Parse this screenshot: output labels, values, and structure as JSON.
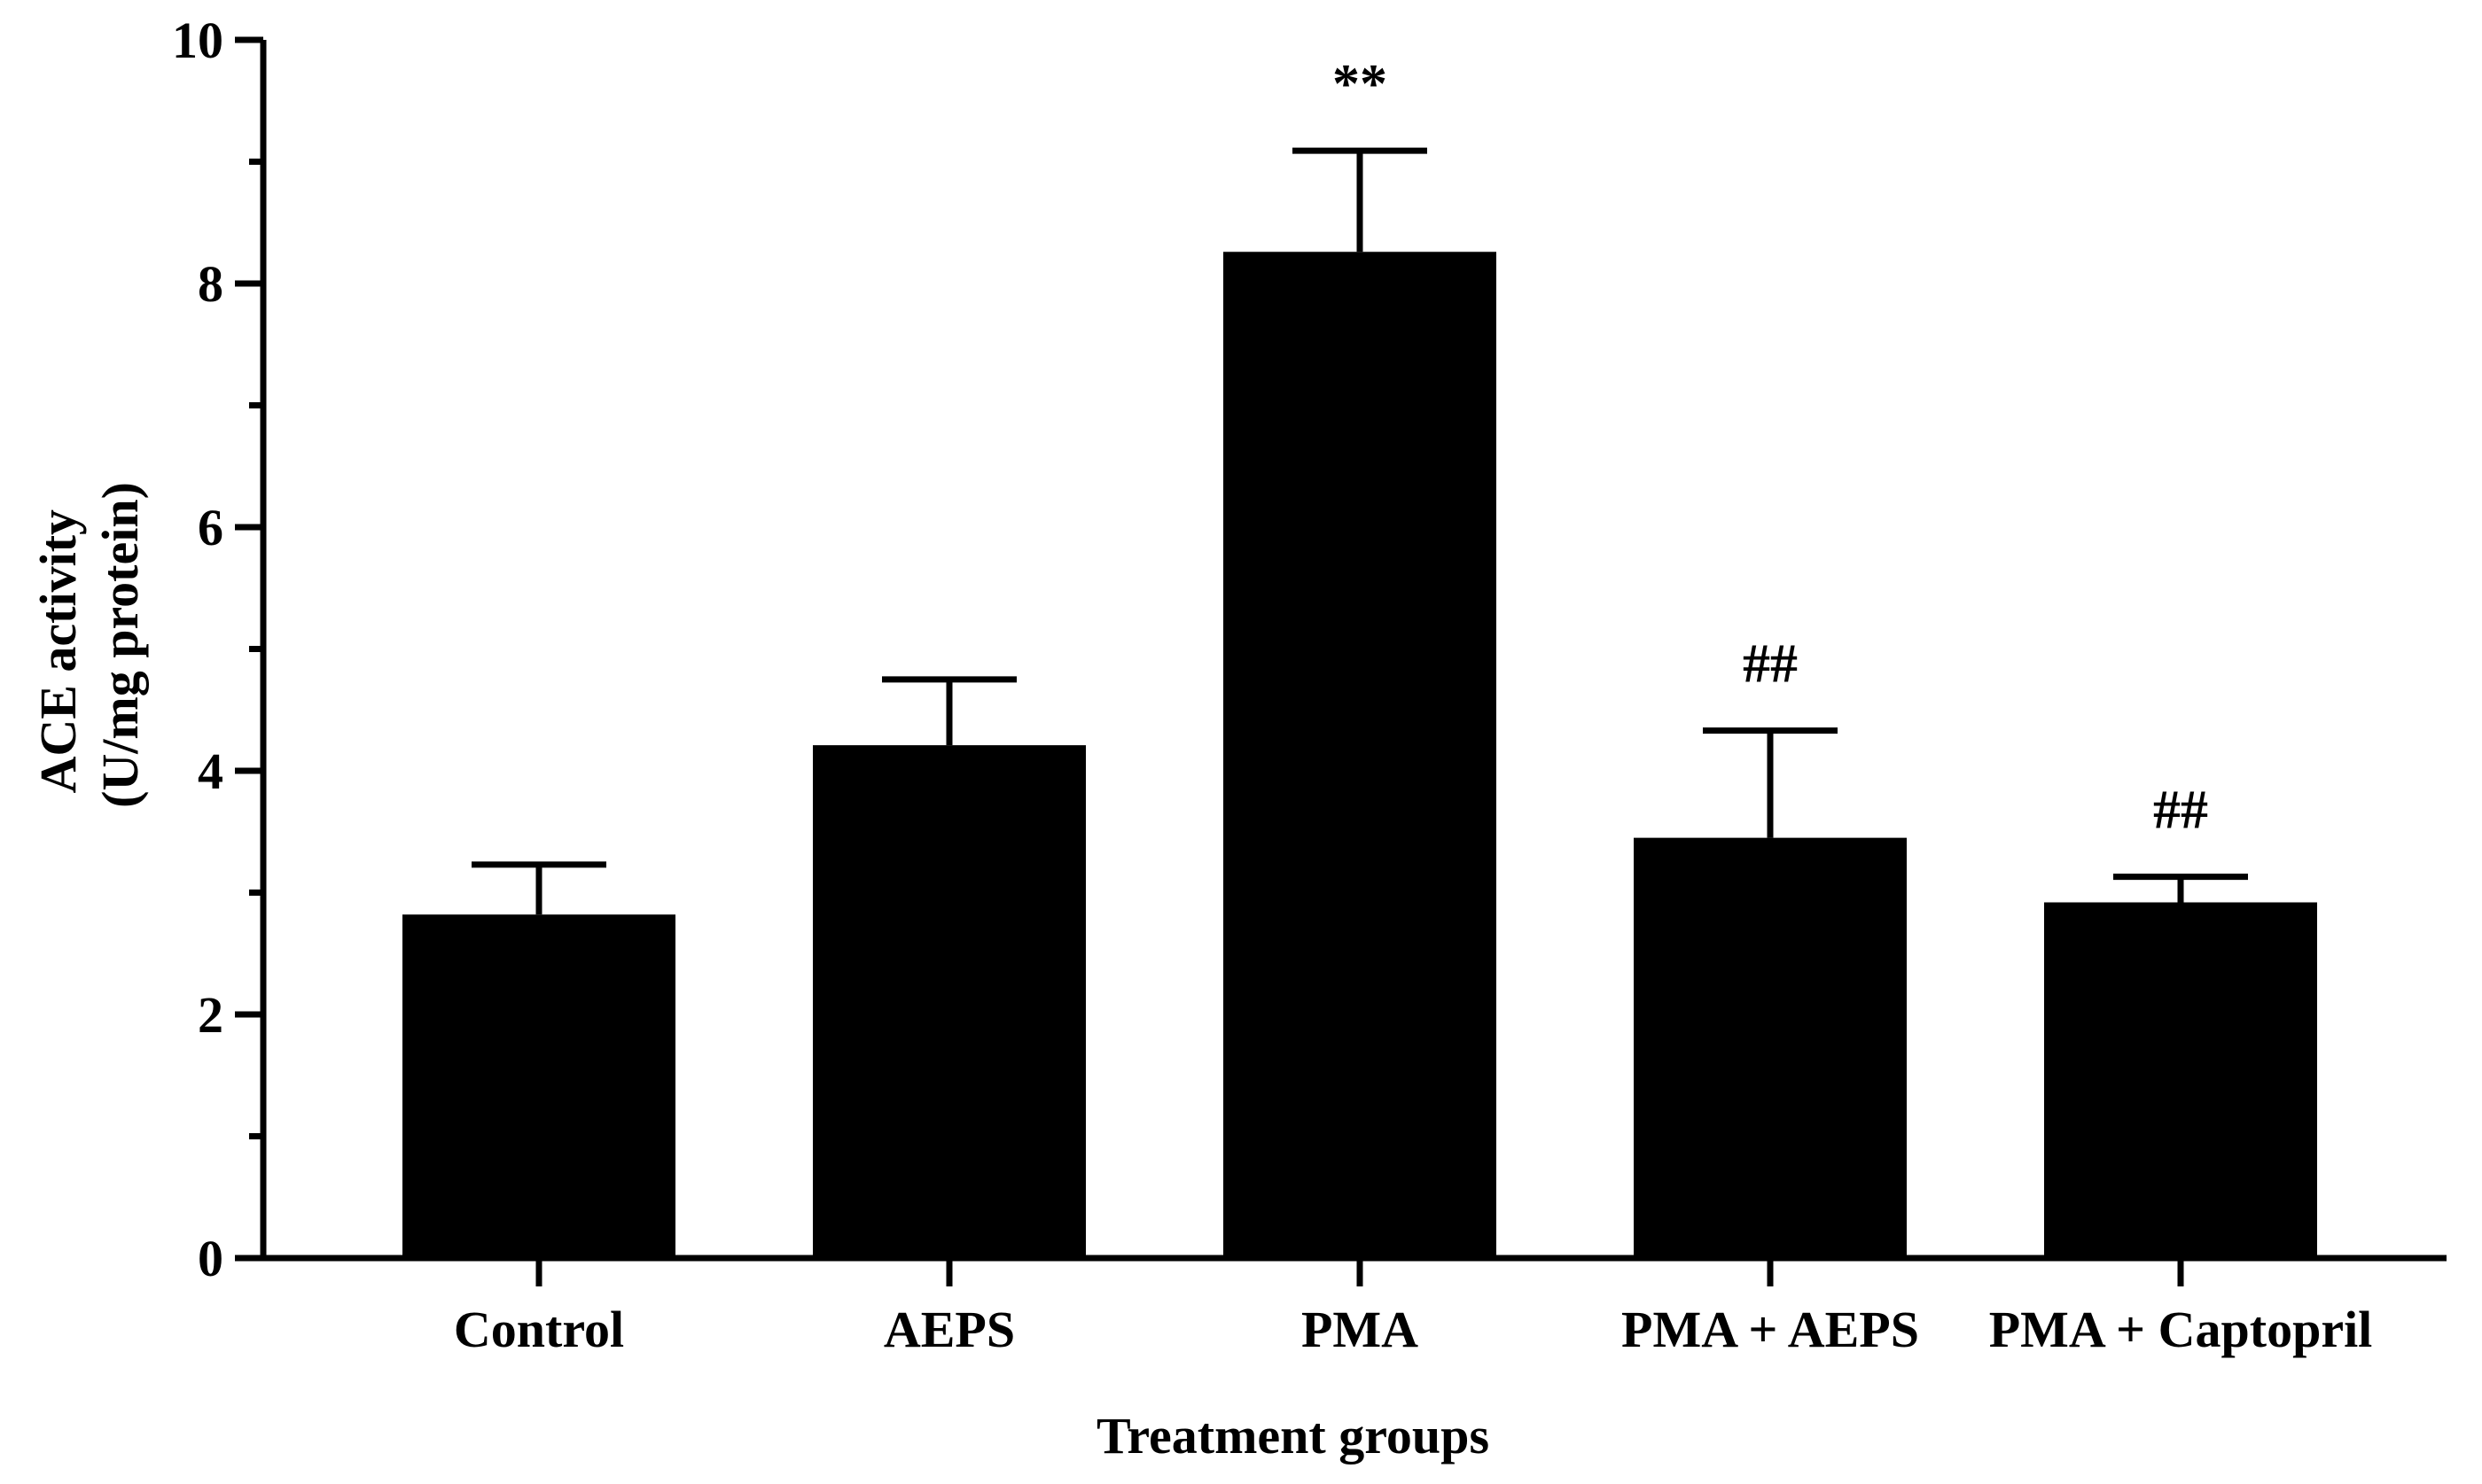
{
  "chart_data": {
    "type": "bar",
    "title": "",
    "xlabel": "Treatment groups",
    "ylabel_lines": [
      "ACE activity",
      "(U/mg protein)"
    ],
    "categories": [
      "Control",
      "AEPS",
      "PMA",
      "PMA + AEPS",
      "PMA + Captopril"
    ],
    "values": [
      2.82,
      4.21,
      8.26,
      3.45,
      2.92
    ],
    "errors": [
      0.41,
      0.54,
      0.83,
      0.88,
      0.21
    ],
    "significance": [
      "",
      "",
      "**",
      "##",
      "##"
    ],
    "ylim": [
      0,
      10
    ],
    "yticks": [
      0,
      2,
      4,
      6,
      8,
      10
    ],
    "yticks_minor": [
      1,
      3,
      5,
      7,
      9
    ],
    "grid": false,
    "bar_color": "#000000",
    "axis_color": "#000000"
  }
}
